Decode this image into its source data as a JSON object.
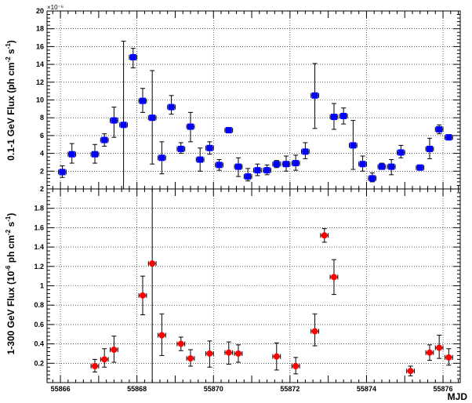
{
  "chart_data": [
    {
      "type": "scatter",
      "panel": "top",
      "ylabel": "0.1-1 GeV Flux (ph cm⁻² s⁻¹)",
      "ylabel_parts": {
        "pre": "0.1-1 GeV Flux (ph cm",
        "sup1": "-2",
        "mid": " s",
        "sup2": "-1",
        "post": ")"
      },
      "exponent_label": "×10⁻⁶",
      "ylim": [
        0,
        20
      ],
      "yticks": [
        2,
        4,
        6,
        8,
        10,
        12,
        14,
        16,
        18,
        20
      ],
      "marker": "square",
      "color": "#0000ff",
      "grid": true,
      "points": [
        {
          "x": 55866.05,
          "y": 1.9,
          "lo": 1.3,
          "hi": 2.6
        },
        {
          "x": 55866.3,
          "y": 3.9,
          "lo": 2.9,
          "hi": 5.1
        },
        {
          "x": 55866.9,
          "y": 3.9,
          "lo": 2.9,
          "hi": 5.0
        },
        {
          "x": 55867.15,
          "y": 5.5,
          "lo": 4.8,
          "hi": 6.2
        },
        {
          "x": 55867.4,
          "y": 7.7,
          "lo": 5.8,
          "hi": 9.2
        },
        {
          "x": 55867.65,
          "y": 7.2,
          "lo": 0,
          "hi": 16.6
        },
        {
          "x": 55867.9,
          "y": 14.8,
          "lo": 13.6,
          "hi": 15.8
        },
        {
          "x": 55868.15,
          "y": 9.9,
          "lo": 8.6,
          "hi": 11.3
        },
        {
          "x": 55868.4,
          "y": 8.0,
          "lo": 2.8,
          "hi": 13.3
        },
        {
          "x": 55868.65,
          "y": 3.5,
          "lo": 1.7,
          "hi": 5.3
        },
        {
          "x": 55868.9,
          "y": 9.2,
          "lo": 8.4,
          "hi": 10.5
        },
        {
          "x": 55869.15,
          "y": 4.5,
          "lo": 4.0,
          "hi": 5.2
        },
        {
          "x": 55869.4,
          "y": 7.0,
          "lo": 5.3,
          "hi": 8.6
        },
        {
          "x": 55869.65,
          "y": 3.3,
          "lo": 2.0,
          "hi": 4.6
        },
        {
          "x": 55869.9,
          "y": 4.6,
          "lo": 3.9,
          "hi": 5.3
        },
        {
          "x": 55870.15,
          "y": 2.7,
          "lo": 2.1,
          "hi": 3.3
        },
        {
          "x": 55870.4,
          "y": 6.6,
          "lo": 6.3,
          "hi": 6.9
        },
        {
          "x": 55870.65,
          "y": 2.5,
          "lo": 1.4,
          "hi": 3.5
        },
        {
          "x": 55870.9,
          "y": 1.4,
          "lo": 0.9,
          "hi": 2.3
        },
        {
          "x": 55871.15,
          "y": 2.1,
          "lo": 1.5,
          "hi": 2.8
        },
        {
          "x": 55871.4,
          "y": 2.1,
          "lo": 1.6,
          "hi": 2.7
        },
        {
          "x": 55871.65,
          "y": 2.8,
          "lo": 2.4,
          "hi": 3.2
        },
        {
          "x": 55871.9,
          "y": 2.8,
          "lo": 2.0,
          "hi": 3.7
        },
        {
          "x": 55872.15,
          "y": 2.9,
          "lo": 2.1,
          "hi": 3.8
        },
        {
          "x": 55872.4,
          "y": 4.2,
          "lo": 3.4,
          "hi": 5.2
        },
        {
          "x": 55872.65,
          "y": 10.5,
          "lo": 6.8,
          "hi": 14.1
        },
        {
          "x": 55873.15,
          "y": 8.1,
          "lo": 6.7,
          "hi": 9.6
        },
        {
          "x": 55873.4,
          "y": 8.2,
          "lo": 7.3,
          "hi": 9.1
        },
        {
          "x": 55873.65,
          "y": 4.9,
          "lo": 2.2,
          "hi": 7.7
        },
        {
          "x": 55873.9,
          "y": 2.8,
          "lo": 2.0,
          "hi": 3.7
        },
        {
          "x": 55874.15,
          "y": 1.2,
          "lo": 0.8,
          "hi": 1.8
        },
        {
          "x": 55874.4,
          "y": 2.5,
          "lo": 2.2,
          "hi": 2.9
        },
        {
          "x": 55874.65,
          "y": 2.5,
          "lo": 1.6,
          "hi": 3.3
        },
        {
          "x": 55874.9,
          "y": 4.1,
          "lo": 3.5,
          "hi": 4.9
        },
        {
          "x": 55875.4,
          "y": 2.4,
          "lo": 2.2,
          "hi": 2.7
        },
        {
          "x": 55875.65,
          "y": 4.5,
          "lo": 3.4,
          "hi": 5.7
        },
        {
          "x": 55875.9,
          "y": 6.7,
          "lo": 6.2,
          "hi": 7.2
        },
        {
          "x": 55876.15,
          "y": 5.8,
          "lo": 5.5,
          "hi": 6.1
        }
      ],
      "x_error": 0.1
    },
    {
      "type": "scatter",
      "panel": "bottom",
      "xlabel": "MJD",
      "ylabel": "1-300 GeV Flux (10⁻⁶ ph cm⁻² s⁻¹)",
      "ylabel_parts": {
        "pre": "1-300 GeV Flux (10",
        "sup0": "-6",
        "mid0": " ph cm",
        "sup1": "-2",
        "mid": " s",
        "sup2": "-1",
        "post": ")"
      },
      "xlim": [
        55865.65,
        55876.45
      ],
      "xticks": [
        55866,
        55868,
        55870,
        55872,
        55874,
        55876
      ],
      "ylim": [
        0,
        2
      ],
      "yticks": [
        0.2,
        0.4,
        0.6,
        0.8,
        1,
        1.2,
        1.4,
        1.6,
        1.8,
        2
      ],
      "marker": "circle",
      "color": "#ff0000",
      "grid": true,
      "points": [
        {
          "x": 55866.9,
          "y": 0.17,
          "lo": 0.11,
          "hi": 0.24
        },
        {
          "x": 55867.15,
          "y": 0.24,
          "lo": 0.16,
          "hi": 0.35
        },
        {
          "x": 55867.4,
          "y": 0.34,
          "lo": 0.21,
          "hi": 0.48
        },
        {
          "x": 55868.15,
          "y": 0.9,
          "lo": 0.7,
          "hi": 1.1
        },
        {
          "x": 55868.4,
          "y": 1.23,
          "lo": 0,
          "hi": 2.0
        },
        {
          "x": 55868.65,
          "y": 0.49,
          "lo": 0.28,
          "hi": 0.71
        },
        {
          "x": 55869.15,
          "y": 0.4,
          "lo": 0.33,
          "hi": 0.47
        },
        {
          "x": 55869.4,
          "y": 0.25,
          "lo": 0.17,
          "hi": 0.34
        },
        {
          "x": 55869.9,
          "y": 0.3,
          "lo": 0.16,
          "hi": 0.43
        },
        {
          "x": 55870.4,
          "y": 0.31,
          "lo": 0.19,
          "hi": 0.42
        },
        {
          "x": 55870.65,
          "y": 0.3,
          "lo": 0.21,
          "hi": 0.39
        },
        {
          "x": 55871.65,
          "y": 0.27,
          "lo": 0.13,
          "hi": 0.41
        },
        {
          "x": 55872.15,
          "y": 0.17,
          "lo": 0.09,
          "hi": 0.26
        },
        {
          "x": 55872.65,
          "y": 0.53,
          "lo": 0.38,
          "hi": 0.71
        },
        {
          "x": 55872.9,
          "y": 1.52,
          "lo": 1.45,
          "hi": 1.59
        },
        {
          "x": 55873.15,
          "y": 1.09,
          "lo": 0.91,
          "hi": 1.27
        },
        {
          "x": 55875.15,
          "y": 0.12,
          "lo": 0.07,
          "hi": 0.17
        },
        {
          "x": 55875.65,
          "y": 0.31,
          "lo": 0.23,
          "hi": 0.39
        },
        {
          "x": 55875.9,
          "y": 0.36,
          "lo": 0.25,
          "hi": 0.49
        },
        {
          "x": 55876.15,
          "y": 0.26,
          "lo": 0.18,
          "hi": 0.35
        }
      ],
      "x_error": 0.1
    }
  ]
}
